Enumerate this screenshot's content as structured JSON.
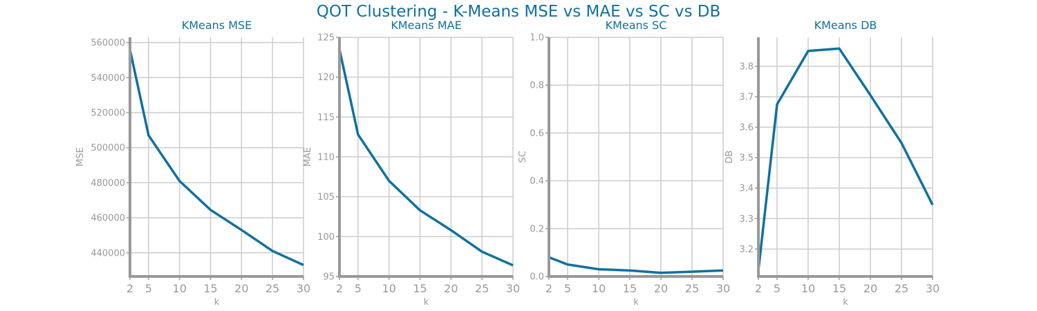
{
  "figure_title": "QOT Clustering - K-Means MSE vs MAE vs SC vs DB",
  "colors": {
    "line": "#1070a0",
    "grid": "#cccccc",
    "axis": "#999999",
    "tick_text": "#999999",
    "title": "#1070a0"
  },
  "chart_data": [
    {
      "type": "line",
      "title": "KMeans MSE",
      "xlabel": "k",
      "ylabel": "MSE",
      "x": [
        2,
        5,
        10,
        15,
        20,
        25,
        30
      ],
      "xticks": [
        2,
        5,
        10,
        15,
        20,
        25,
        30
      ],
      "xlim": [
        2,
        30
      ],
      "ylim": [
        426500,
        563000
      ],
      "yticks": [
        440000,
        460000,
        480000,
        500000,
        520000,
        540000,
        560000
      ],
      "series": [
        {
          "values": [
            556000,
            507000,
            481000,
            464500,
            453000,
            441000,
            433000
          ]
        }
      ],
      "grid": true
    },
    {
      "type": "line",
      "title": "KMeans MAE",
      "xlabel": "k",
      "ylabel": "MAE",
      "x": [
        2,
        5,
        10,
        15,
        20,
        25,
        30
      ],
      "xticks": [
        2,
        5,
        10,
        15,
        20,
        25,
        30
      ],
      "xlim": [
        2,
        30
      ],
      "ylim": [
        95,
        125
      ],
      "yticks": [
        95,
        100,
        105,
        110,
        115,
        120,
        125
      ],
      "series": [
        {
          "values": [
            123.5,
            112.8,
            107.0,
            103.3,
            100.8,
            98.1,
            96.4
          ]
        }
      ],
      "grid": true
    },
    {
      "type": "line",
      "title": "KMeans SC",
      "xlabel": "k",
      "ylabel": "SC",
      "x": [
        2,
        5,
        10,
        15,
        20,
        25,
        30
      ],
      "xticks": [
        2,
        5,
        10,
        15,
        20,
        25,
        30
      ],
      "xlim": [
        2,
        30
      ],
      "ylim": [
        0,
        1.0
      ],
      "yticks": [
        0.0,
        0.2,
        0.4,
        0.6,
        0.8,
        1.0
      ],
      "ytick_decimals": 1,
      "series": [
        {
          "values": [
            0.08,
            0.05,
            0.03,
            0.025,
            0.015,
            0.02,
            0.025
          ]
        }
      ],
      "grid": true
    },
    {
      "type": "line",
      "title": "KMeans DB",
      "xlabel": "k",
      "ylabel": "DB",
      "x": [
        2,
        5,
        10,
        15,
        20,
        25,
        30
      ],
      "xticks": [
        2,
        5,
        10,
        15,
        20,
        25,
        30
      ],
      "xlim": [
        2,
        30
      ],
      "ylim": [
        3.11,
        3.895
      ],
      "yticks": [
        3.2,
        3.3,
        3.4,
        3.5,
        3.6,
        3.7,
        3.8
      ],
      "ytick_decimals": 1,
      "series": [
        {
          "values": [
            3.13,
            3.675,
            3.85,
            3.858,
            3.705,
            3.548,
            3.345
          ]
        }
      ],
      "grid": true
    }
  ]
}
